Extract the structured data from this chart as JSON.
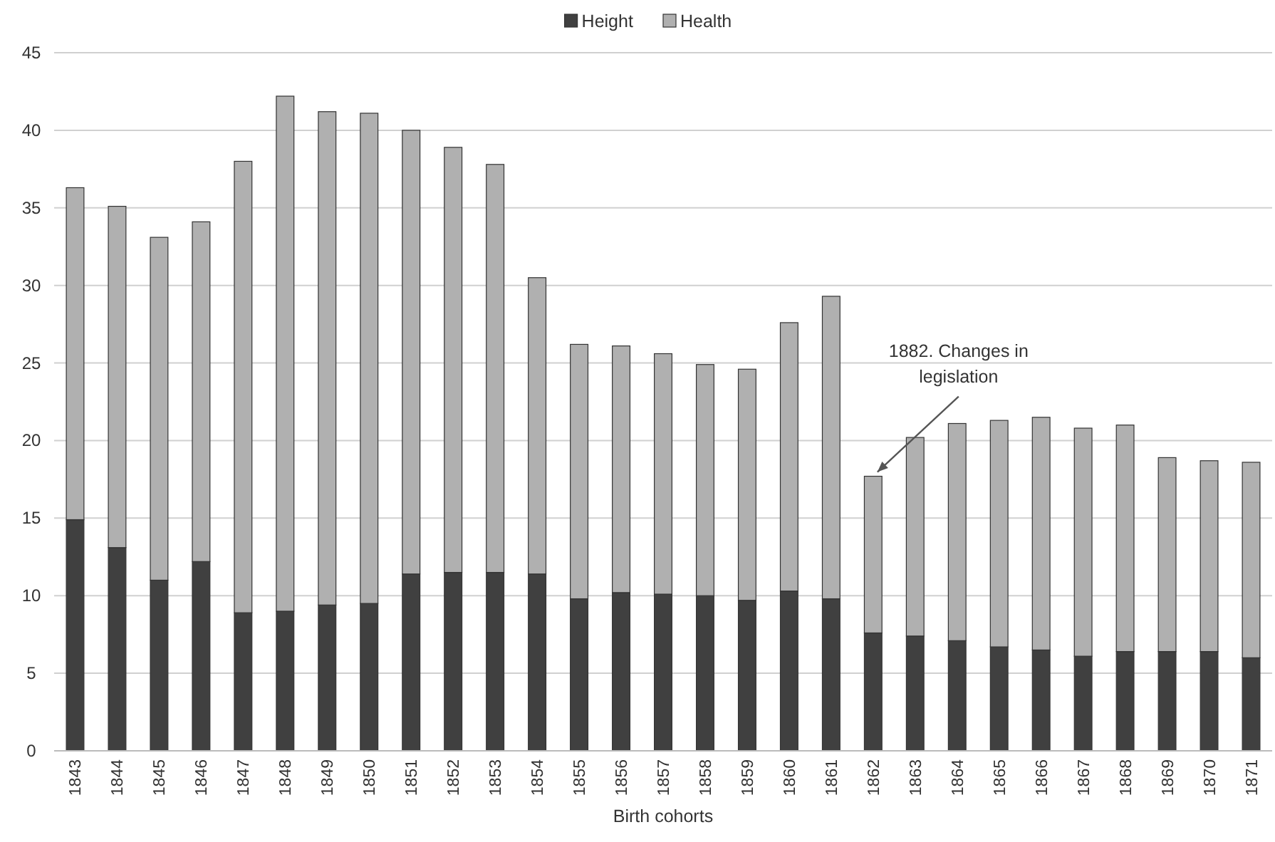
{
  "chart_data": {
    "type": "bar",
    "stacked": true,
    "xlabel": "Birth cohorts",
    "categories": [
      "1843",
      "1844",
      "1845",
      "1846",
      "1847",
      "1848",
      "1849",
      "1850",
      "1851",
      "1852",
      "1853",
      "1854",
      "1855",
      "1856",
      "1857",
      "1858",
      "1859",
      "1860",
      "1861",
      "1862",
      "1863",
      "1864",
      "1865",
      "1866",
      "1867",
      "1868",
      "1869",
      "1870",
      "1871"
    ],
    "series": [
      {
        "name": "Height",
        "color": "#404040",
        "values": [
          14.9,
          13.1,
          11.0,
          12.2,
          8.9,
          9.0,
          9.4,
          9.5,
          11.4,
          11.5,
          11.5,
          11.4,
          9.8,
          10.2,
          10.1,
          10.0,
          9.7,
          10.3,
          9.8,
          7.6,
          7.4,
          7.1,
          6.7,
          6.5,
          6.1,
          6.4,
          6.4,
          6.4,
          6.0
        ]
      },
      {
        "name": "Health",
        "color": "#b0b0b0",
        "values": [
          21.4,
          22.0,
          22.1,
          21.9,
          29.1,
          33.2,
          31.8,
          31.6,
          28.6,
          27.4,
          26.3,
          19.1,
          16.4,
          15.9,
          15.5,
          14.9,
          14.9,
          17.3,
          19.5,
          10.1,
          12.8,
          14.0,
          14.6,
          15.0,
          14.7,
          14.6,
          12.5,
          12.3,
          12.6
        ]
      }
    ],
    "ylim": [
      0,
      45
    ],
    "yticks": [
      0,
      5,
      10,
      15,
      20,
      25,
      30,
      35,
      40,
      45
    ],
    "grid": "y",
    "legend": "top",
    "annotations": [
      {
        "text": "1882. Changes in legislation",
        "x": "1862",
        "y": 17.7
      }
    ]
  }
}
